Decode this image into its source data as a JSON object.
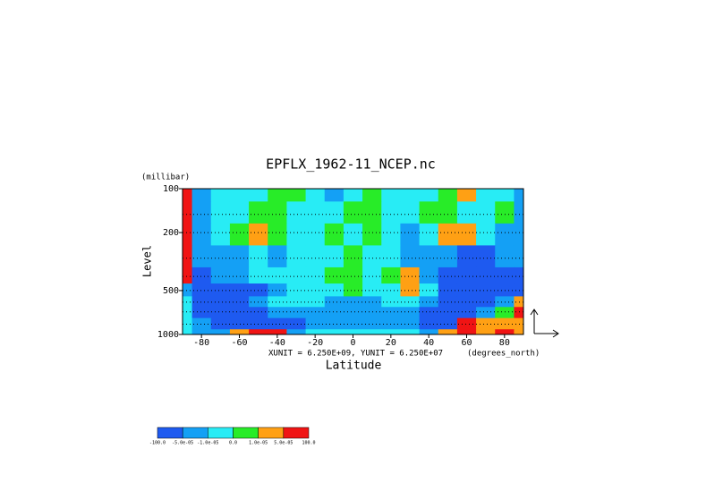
{
  "chart_data": {
    "type": "contour",
    "title": "EPFLX_1962-11_NCEP.nc",
    "y_unit": "(millibar)",
    "y_label": "Level",
    "x_label": "Latitude",
    "x_unit": "(degrees_north)",
    "note": "XUNIT = 6.250E+09, YUNIT = 6.250E+07",
    "xlim": [
      -90,
      90
    ],
    "xticks": [
      -80,
      -60,
      -40,
      -20,
      0,
      20,
      40,
      60,
      80
    ],
    "ylim": [
      1000,
      100
    ],
    "ylog": true,
    "yticks": [
      100,
      200,
      500,
      1000
    ],
    "grid": true,
    "x": [
      -90,
      -80,
      -70,
      -60,
      -50,
      -40,
      -30,
      -20,
      -10,
      0,
      10,
      20,
      30,
      40,
      50,
      60,
      70,
      80,
      90
    ],
    "y": [
      100,
      150,
      200,
      300,
      400,
      500,
      600,
      700,
      850,
      1000
    ],
    "values": [
      [
        8e-05,
        -3e-05,
        -5e-06,
        -5e-06,
        -5e-06,
        5e-06,
        5e-06,
        -5e-06,
        -3e-05,
        -5e-06,
        5e-06,
        -5e-06,
        -5e-06,
        -5e-06,
        5e-06,
        3e-05,
        -5e-06,
        -5e-06,
        -3e-05
      ],
      [
        8e-05,
        -3e-05,
        -5e-06,
        -5e-06,
        5e-06,
        5e-06,
        -5e-06,
        -5e-06,
        -5e-06,
        5e-06,
        5e-06,
        -5e-06,
        -5e-06,
        5e-06,
        5e-06,
        -5e-06,
        -5e-06,
        5e-06,
        -3e-05
      ],
      [
        8e-05,
        -3e-05,
        -5e-06,
        5e-06,
        3e-05,
        5e-06,
        -5e-06,
        -5e-06,
        5e-06,
        -5e-06,
        5e-06,
        -5e-06,
        -3e-05,
        -5e-06,
        3e-05,
        3e-05,
        -5e-06,
        -3e-05,
        -3e-05
      ],
      [
        8e-05,
        -3e-05,
        -3e-05,
        -3e-05,
        -5e-06,
        -3e-05,
        -5e-06,
        -5e-06,
        -5e-06,
        5e-06,
        -5e-06,
        -5e-06,
        -3e-05,
        -3e-05,
        -3e-05,
        -8e-05,
        -8e-05,
        -3e-05,
        -3e-05
      ],
      [
        8e-05,
        -8e-05,
        -3e-05,
        -3e-05,
        -5e-06,
        -5e-06,
        -5e-06,
        -5e-06,
        5e-06,
        5e-06,
        -5e-06,
        5e-06,
        3e-05,
        -3e-05,
        -8e-05,
        -8e-05,
        -8e-05,
        -8e-05,
        -8e-05
      ],
      [
        -3e-05,
        -8e-05,
        -8e-05,
        -8e-05,
        -8e-05,
        -3e-05,
        -5e-06,
        -5e-06,
        -5e-06,
        5e-06,
        -5e-06,
        -5e-06,
        3e-05,
        -5e-06,
        -8e-05,
        -8e-05,
        -8e-05,
        -8e-05,
        -8e-05
      ],
      [
        -5e-06,
        -8e-05,
        -8e-05,
        -8e-05,
        -3e-05,
        -5e-06,
        -5e-06,
        -5e-06,
        -3e-05,
        -3e-05,
        -3e-05,
        -5e-06,
        -5e-06,
        -3e-05,
        -8e-05,
        -8e-05,
        -8e-05,
        -3e-05,
        3e-05
      ],
      [
        -5e-06,
        -8e-05,
        -8e-05,
        -8e-05,
        -8e-05,
        -3e-05,
        -3e-05,
        -3e-05,
        -3e-05,
        -3e-05,
        -3e-05,
        -3e-05,
        -3e-05,
        -8e-05,
        -8e-05,
        -8e-05,
        -3e-05,
        5e-06,
        8e-05
      ],
      [
        -5e-06,
        -3e-05,
        -8e-05,
        -8e-05,
        -8e-05,
        -8e-05,
        -8e-05,
        -3e-05,
        -3e-05,
        -3e-05,
        -3e-05,
        -3e-05,
        -3e-05,
        -8e-05,
        -8e-05,
        8e-05,
        3e-05,
        3e-05,
        3e-05
      ],
      [
        -5e-06,
        -3e-05,
        -3e-05,
        3e-05,
        8e-05,
        8e-05,
        -3e-05,
        -5e-06,
        -5e-06,
        -5e-06,
        -5e-06,
        -5e-06,
        -5e-06,
        -3e-05,
        3e-05,
        8e-05,
        3e-05,
        8e-05,
        3e-05
      ]
    ],
    "levels": [
      {
        "value": -100,
        "label": "-100.0"
      },
      {
        "value": -5e-05,
        "label": "-5.0e-05"
      },
      {
        "value": -1e-05,
        "label": "-1.0e-05"
      },
      {
        "value": 0,
        "label": "0.0"
      },
      {
        "value": 1e-05,
        "label": "1.0e-05"
      },
      {
        "value": 5e-05,
        "label": "5.0e-05"
      },
      {
        "value": 100,
        "label": "100.0"
      }
    ],
    "colors": [
      "#1e5af0",
      "#14a0f5",
      "#28ecf5",
      "#28ec28",
      "#ffa014",
      "#f01414"
    ]
  }
}
